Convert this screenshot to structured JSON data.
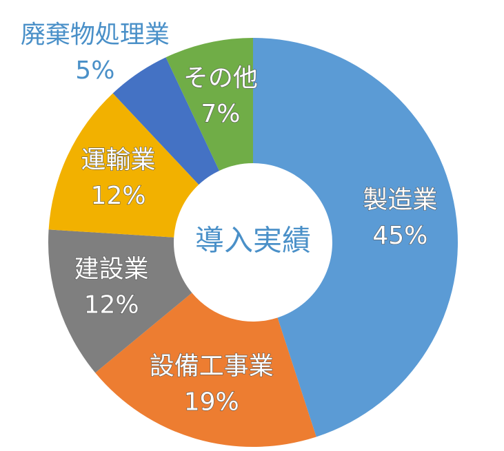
{
  "chart_data": {
    "type": "donut",
    "title": "導入実績",
    "categories": [
      "製造業",
      "設備工事業",
      "建設業",
      "運輸業",
      "廃棄物処理業",
      "その他"
    ],
    "values": [
      45,
      19,
      12,
      12,
      5,
      7
    ],
    "value_labels": [
      "45%",
      "19%",
      "12%",
      "12%",
      "5%",
      "7%"
    ],
    "colors": [
      "#5b9bd5",
      "#ed7d31",
      "#7f7f7f",
      "#f2b100",
      "#4472c4",
      "#70ad47"
    ]
  }
}
